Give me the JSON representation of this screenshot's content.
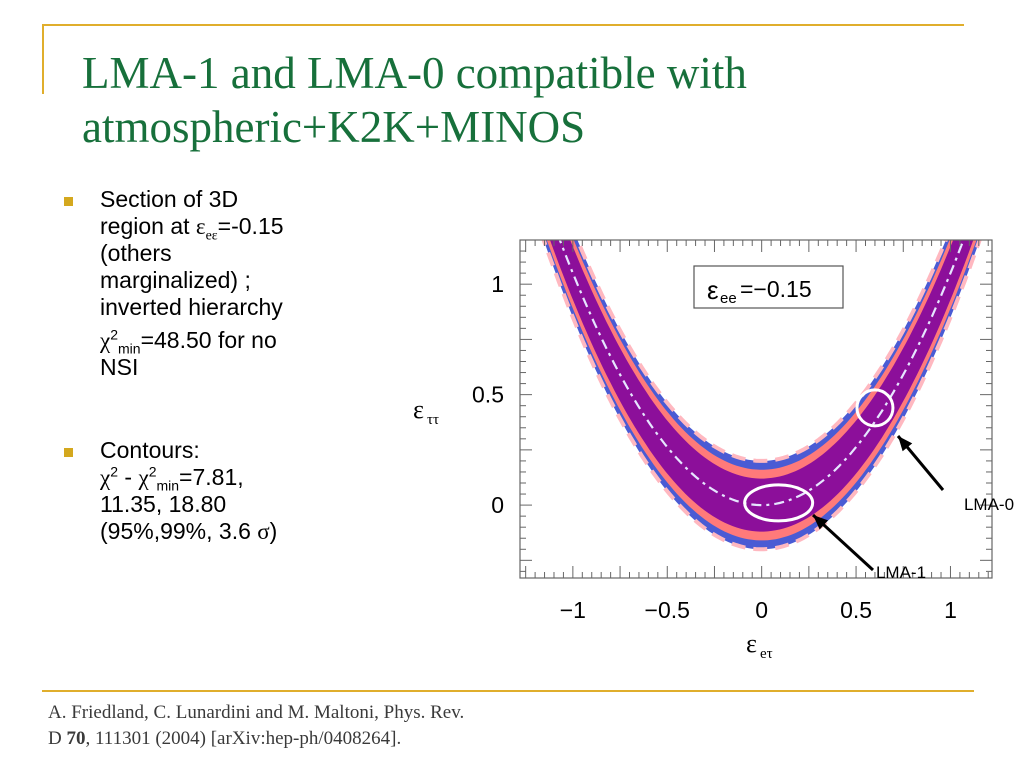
{
  "slide": {
    "title_line1": "LMA-1 and LMA-0 compatible with",
    "title_line2": "atmospheric+K2K+MINOS",
    "accent_color": "#e0ae2c",
    "title_color": "#17703b"
  },
  "bullets": {
    "b1": {
      "l1": "Section of 3D",
      "l2_pre": "region at ",
      "l2_eps": "ε",
      "l2_sub": "eε",
      "l2_post": "=-0.15",
      "l3": "(others",
      "l4": "marginalized) ;",
      "l5": "inverted hierarchy",
      "l6_chi": "χ",
      "l6_sup": "2",
      "l6_sub": "min",
      "l6_post": "=48.50 for  no",
      "l7": "NSI"
    },
    "b2": {
      "l1": "Contours:",
      "chi": "χ",
      "sup": "2",
      "mid": " - ",
      "chi2": "χ",
      "sup2": "2",
      "sub2": "min",
      "post": "=7.81,",
      "l3": "11.35, 18.80",
      "l4_pre": "(95%,99%, 3.6 ",
      "l4_sigma": "σ",
      "l4_post": ")"
    }
  },
  "citation": {
    "line1": "A. Friedland, C. Lunardini and M. Maltoni, Phys. Rev.",
    "line2_pre": "D ",
    "line2_bold": "70",
    "line2_post": ", 111301 (2004) [arXiv:hep-ph/0408264]."
  },
  "chart_data": {
    "type": "contour",
    "xlabel": "ε_eτ",
    "ylabel": "ε_ττ",
    "xlim": [
      -1.28,
      1.22
    ],
    "ylim": [
      -0.33,
      1.2
    ],
    "xticks": [
      {
        "v": -1,
        "label": "−1"
      },
      {
        "v": -0.5,
        "label": "−0.5"
      },
      {
        "v": 0,
        "label": "0"
      },
      {
        "v": 0.5,
        "label": "0.5"
      },
      {
        "v": 1,
        "label": "1"
      }
    ],
    "yticks": [
      {
        "v": 0,
        "label": "0"
      },
      {
        "v": 0.5,
        "label": "0.5"
      },
      {
        "v": 1,
        "label": "1"
      }
    ],
    "annotation_box": {
      "text_eps": "ε",
      "text_sub": "ee",
      "text_val": "=−0.15"
    },
    "regions": {
      "center_curve_y0": 0,
      "center_curve_k": 1.05,
      "levels": [
        {
          "name": "3.6σ",
          "color": "#4a5bd4"
        },
        {
          "name": "99%",
          "color": "#ff7a7a"
        },
        {
          "name": "95%",
          "color": "#8c0f9a"
        }
      ],
      "dashed_line_color": "#ffb8c0",
      "center_line_color": "#e6e6ff"
    },
    "markers": [
      {
        "name": "LMA-0",
        "x": 0.6,
        "y": 0.44
      },
      {
        "name": "LMA-1",
        "x": 0.09,
        "y": 0.01
      }
    ]
  }
}
